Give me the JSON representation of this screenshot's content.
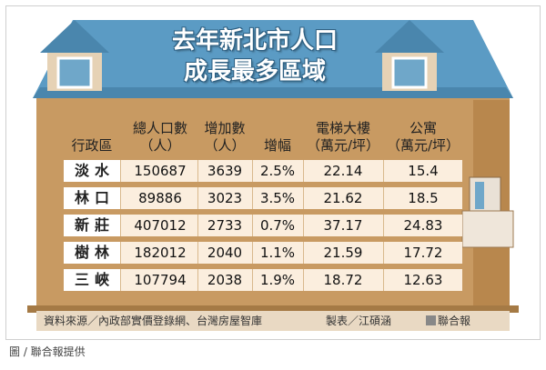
{
  "title_line1": "去年新北市人口",
  "title_line2": "成長最多區域",
  "footer_source": "資料來源／內政部實價登錄網、台灣房屋智庫",
  "footer_maker": "製表／江碩涵",
  "footer_logo": "聯合報",
  "credit": "圖 / 聯合報提供",
  "colors": {
    "roof": "#5b9bc4",
    "wall": "#c89a62",
    "wall_dark": "#b8874d",
    "row_tint": "#fbeede"
  },
  "chart_data": {
    "type": "table",
    "columns": [
      {
        "line1": "",
        "line2": "行政區"
      },
      {
        "line1": "總人口數",
        "line2": "（人）"
      },
      {
        "line1": "增加數",
        "line2": "（人）"
      },
      {
        "line1": "",
        "line2": "增幅"
      },
      {
        "line1": "電梯大樓",
        "line2": "（萬元/坪）"
      },
      {
        "line1": "公寓",
        "line2": "（萬元/坪）"
      }
    ],
    "rows": [
      {
        "district": "淡水",
        "population": "150687",
        "increase": "3639",
        "growth": "2.5%",
        "elevator": "22.14",
        "apartment": "15.4"
      },
      {
        "district": "林口",
        "population": "89886",
        "increase": "3023",
        "growth": "3.5%",
        "elevator": "21.62",
        "apartment": "18.5"
      },
      {
        "district": "新莊",
        "population": "407012",
        "increase": "2733",
        "growth": "0.7%",
        "elevator": "37.17",
        "apartment": "24.83"
      },
      {
        "district": "樹林",
        "population": "182012",
        "increase": "2040",
        "growth": "1.1%",
        "elevator": "21.59",
        "apartment": "17.72"
      },
      {
        "district": "三峽",
        "population": "107794",
        "increase": "2038",
        "growth": "1.9%",
        "elevator": "18.72",
        "apartment": "12.63"
      }
    ]
  }
}
